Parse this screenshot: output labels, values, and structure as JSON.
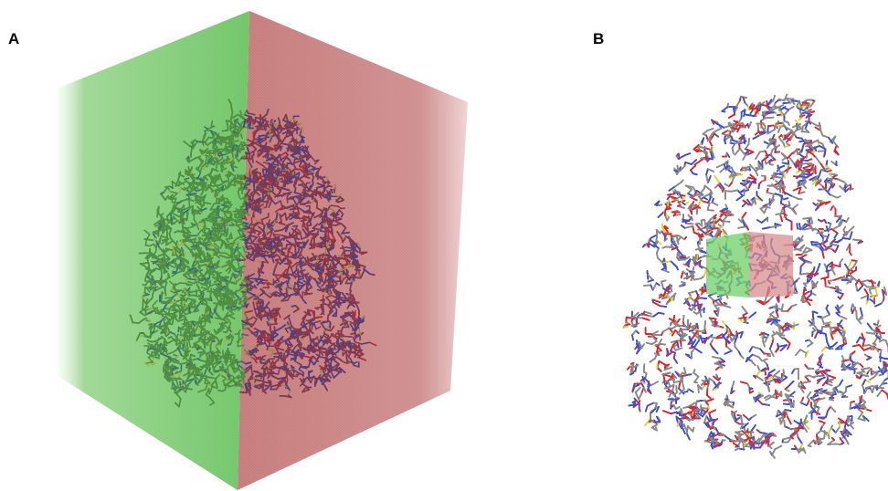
{
  "panels": {
    "a": {
      "label": "A"
    },
    "b": {
      "label": "B"
    }
  },
  "colors": {
    "face_left": "#7fcf78",
    "face_right": "#c98383",
    "atom_carbon_gray": "#8a8a8a",
    "atom_nitrogen": "#3b50d6",
    "atom_oxygen": "#e0242a",
    "atom_sulfur": "#e6d22b",
    "molecule_in_green": "#4f8f44",
    "molecule_in_red": "#7a3a52"
  }
}
